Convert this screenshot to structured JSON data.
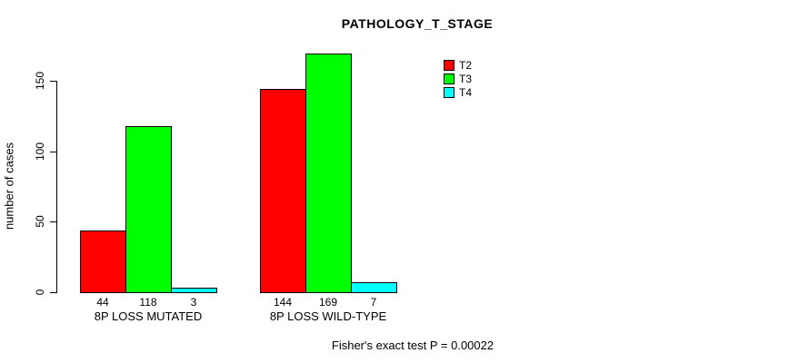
{
  "title": "PATHOLOGY_T_STAGE",
  "footer": "Fisher's exact test P = 0.00022",
  "chart_data": {
    "type": "bar",
    "title": "PATHOLOGY_T_STAGE",
    "categories": [
      "8P LOSS MUTATED",
      "8P LOSS WILD-TYPE"
    ],
    "series": [
      {
        "name": "T2",
        "color": "#ff0000",
        "values": [
          44,
          144
        ]
      },
      {
        "name": "T3",
        "color": "#00ff00",
        "values": [
          118,
          169
        ]
      },
      {
        "name": "T4",
        "color": "#00ffff",
        "values": [
          3,
          7
        ]
      }
    ],
    "bar_value_labels": [
      [
        44,
        118,
        3
      ],
      [
        144,
        169,
        7
      ]
    ],
    "xlabel": "",
    "ylabel": "number of cases",
    "yticks": [
      0,
      50,
      100,
      150
    ],
    "ylim": [
      0,
      169
    ],
    "grid": false,
    "legend_position": "top-right",
    "annotation": "Fisher's exact test P = 0.00022"
  }
}
